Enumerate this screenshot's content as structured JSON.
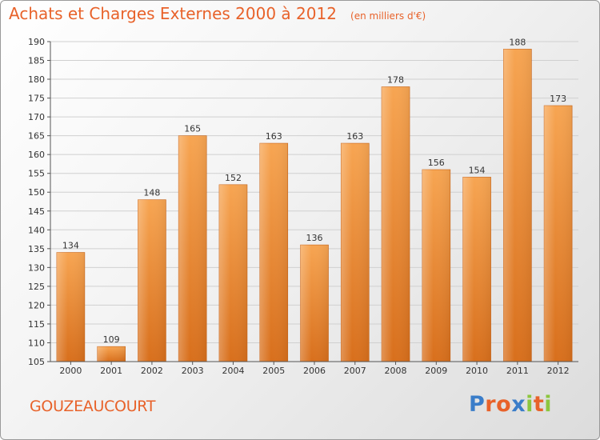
{
  "header": {
    "title": "Achats et Charges Externes 2000 à 2012",
    "subtitle": "(en milliers d'€)"
  },
  "footer": {
    "commune": "GOUZEAUCOURT",
    "logo_letters": [
      "P",
      "r",
      "o",
      "x",
      "i",
      "t",
      "i"
    ],
    "logo_colors": [
      "#3a7dc9",
      "#e8622a",
      "#e8622a",
      "#3a7dc9",
      "#8cc63e",
      "#e8622a",
      "#8cc63e"
    ]
  },
  "colors": {
    "title": "#e8622a",
    "bar_top": "#f7a552",
    "bar_bottom": "#d86f1c",
    "grid": "#d0d0d0"
  },
  "chart_data": {
    "type": "bar",
    "title": "Achats et Charges Externes 2000 à 2012",
    "subtitle": "(en milliers d'€)",
    "categories": [
      "2000",
      "2001",
      "2002",
      "2003",
      "2004",
      "2005",
      "2006",
      "2007",
      "2008",
      "2009",
      "2010",
      "2011",
      "2012"
    ],
    "values": [
      134,
      109,
      148,
      165,
      152,
      163,
      136,
      163,
      178,
      156,
      154,
      188,
      173
    ],
    "yticks": [
      105,
      110,
      115,
      120,
      125,
      130,
      135,
      140,
      145,
      150,
      155,
      160,
      165,
      170,
      175,
      180,
      185,
      190
    ],
    "ylim": [
      105,
      190
    ],
    "grid": true,
    "xlabel": "",
    "ylabel": ""
  }
}
